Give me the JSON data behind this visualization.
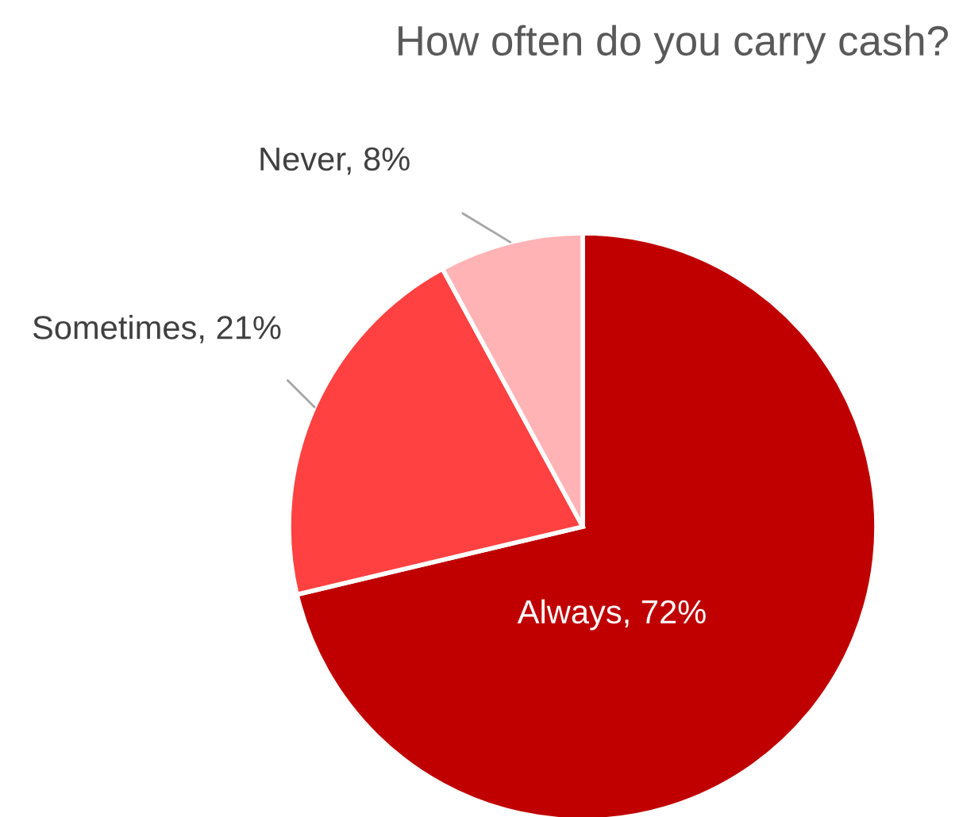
{
  "chart_data": {
    "type": "pie",
    "title": "How often do you carry cash?",
    "categories": [
      "Always",
      "Sometimes",
      "Never"
    ],
    "values": [
      72,
      21,
      8
    ],
    "value_labels": [
      "72%",
      "21%",
      "8%"
    ],
    "colors": [
      "#c00000",
      "#ff4141",
      "#ffb3b5"
    ],
    "legend": false
  }
}
